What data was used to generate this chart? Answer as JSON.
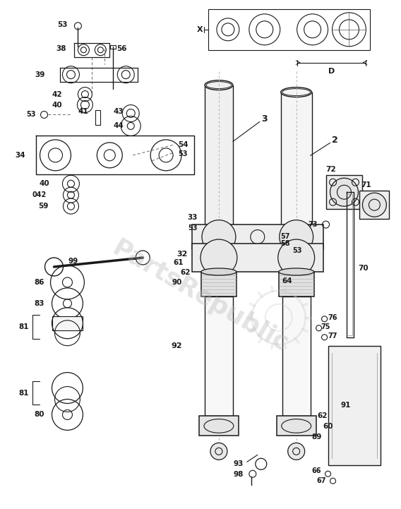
{
  "bg": "#ffffff",
  "lc": "#1a1a1a",
  "figsize": [
    5.68,
    7.21
  ],
  "dpi": 100,
  "watermark_text": "PartsRepublic",
  "watermark_color": "#bbbbbb",
  "watermark_alpha": 0.35
}
